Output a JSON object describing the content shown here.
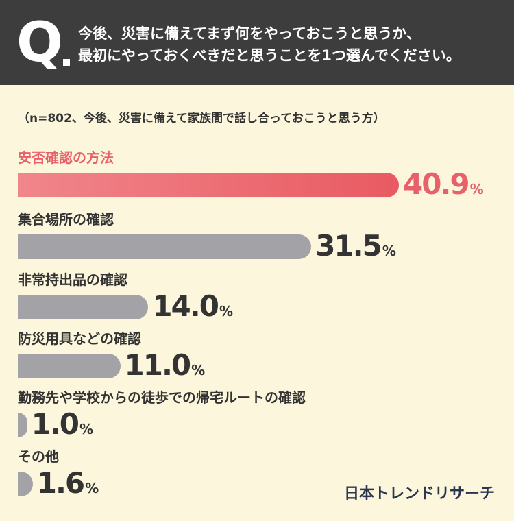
{
  "header": {
    "q_mark": "Q",
    "question_line1": "今後、災害に備えてまず何をやっておこうと思うか、",
    "question_line2": "最初にやっておくべきだと思うことを1つ選んでください。"
  },
  "note": "（n=802、今後、災害に備えて家族間で話し合っておこうと思う方）",
  "logo": "日本トレンドリサーチ",
  "colors": {
    "highlight": "#e8606a",
    "bar_gray": "#a3a3a7",
    "header_bg": "#3d3d3d",
    "background": "#fbf6dc"
  },
  "chart_data": {
    "type": "bar",
    "orientation": "horizontal",
    "unit": "%",
    "categories": [
      "安否確認の方法",
      "集合場所の確認",
      "非常持出品の確認",
      "防災用具などの確認",
      "勤務先や学校からの徒歩での帰宅ルートの確認",
      "その他"
    ],
    "values": [
      40.9,
      31.5,
      14.0,
      11.0,
      1.0,
      1.6
    ],
    "value_labels": [
      "40.9",
      "31.5",
      "14.0",
      "11.0",
      "1.0",
      "1.6"
    ],
    "highlight_index": 0,
    "xlim": [
      0,
      40.9
    ],
    "grid": false,
    "legend": "none"
  }
}
